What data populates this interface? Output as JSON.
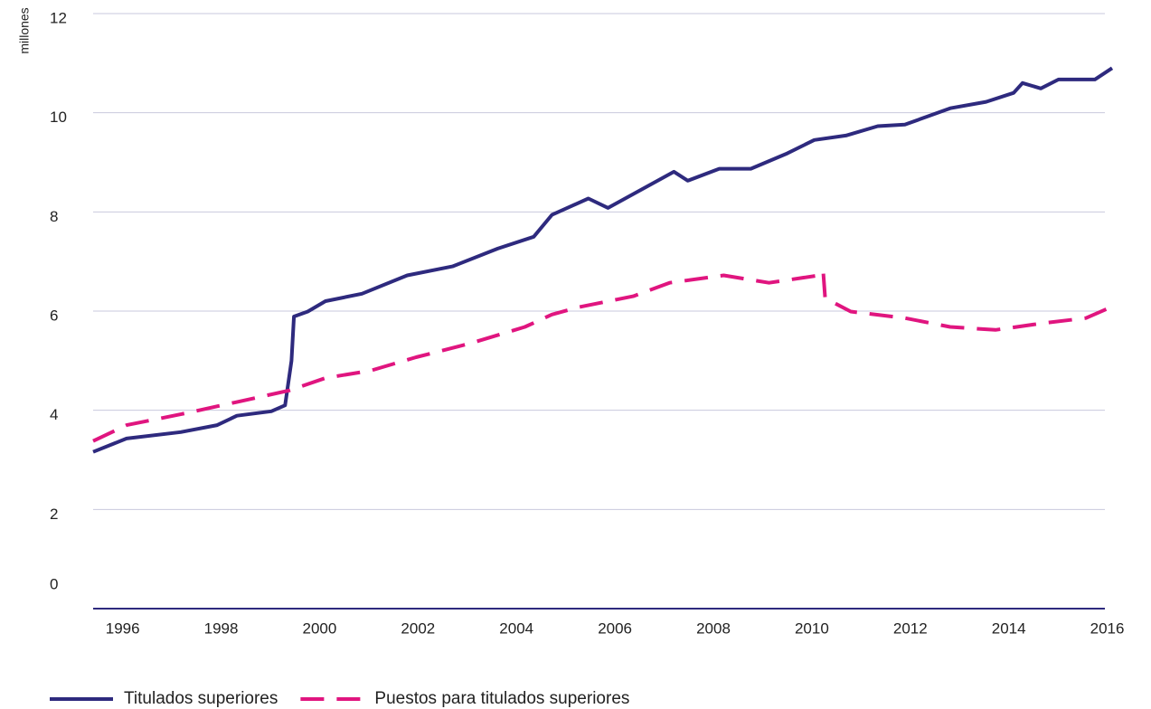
{
  "chart_data": {
    "type": "line",
    "y_label": "millones",
    "xlim": [
      1995.4,
      2016.1
    ],
    "xticks": [
      1996,
      1998,
      2000,
      2002,
      2004,
      2006,
      2008,
      2010,
      2012,
      2014,
      2016
    ],
    "ylim": [
      0,
      12
    ],
    "yticks": [
      0,
      2,
      4,
      6,
      8,
      10,
      12
    ],
    "grid": true,
    "legend": "bottom",
    "series": [
      {
        "name": "Titulados superiores",
        "color": "#2e2a7e",
        "dash": false,
        "x": [
          1995.4,
          1996.08,
          1997.18,
          1997.92,
          1998.32,
          1999.02,
          1999.3,
          1999.43,
          1999.48,
          1999.76,
          2000.12,
          2000.86,
          2001.78,
          2002.7,
          2003.62,
          2004.35,
          2004.72,
          2005.46,
          2005.86,
          2006.37,
          2007.2,
          2007.48,
          2008.12,
          2008.76,
          2009.5,
          2010.05,
          2010.69,
          2011.34,
          2011.89,
          2012.81,
          2013.54,
          2014.1,
          2014.28,
          2014.65,
          2015.01,
          2015.75,
          2016.1
        ],
        "values": [
          3.16,
          3.43,
          3.56,
          3.7,
          3.89,
          3.98,
          4.1,
          5.0,
          5.89,
          5.99,
          6.2,
          6.35,
          6.72,
          6.9,
          7.26,
          7.5,
          7.94,
          8.27,
          8.08,
          8.36,
          8.81,
          8.63,
          8.87,
          8.87,
          9.18,
          9.45,
          9.54,
          9.73,
          9.76,
          10.09,
          10.22,
          10.4,
          10.6,
          10.49,
          10.67,
          10.67,
          10.9
        ]
      },
      {
        "name": "Puestos para titulados superiores",
        "color": "#e0157f",
        "dash": true,
        "x": [
          1995.4,
          1996.08,
          1997.18,
          1998.29,
          1999.39,
          2000.12,
          2001.04,
          2001.96,
          2003.07,
          2004.17,
          2004.72,
          2005.27,
          2006.37,
          2007.11,
          2008.21,
          2009.13,
          2010.14,
          2010.23,
          2010.27,
          2010.79,
          2011.89,
          2012.81,
          2013.73,
          2014.65,
          2015.57,
          2016.08
        ],
        "values": [
          3.38,
          3.7,
          3.92,
          4.16,
          4.4,
          4.65,
          4.8,
          5.07,
          5.35,
          5.68,
          5.93,
          6.08,
          6.3,
          6.57,
          6.72,
          6.57,
          6.72,
          6.81,
          6.26,
          5.99,
          5.86,
          5.68,
          5.62,
          5.75,
          5.86,
          6.08
        ]
      }
    ]
  }
}
